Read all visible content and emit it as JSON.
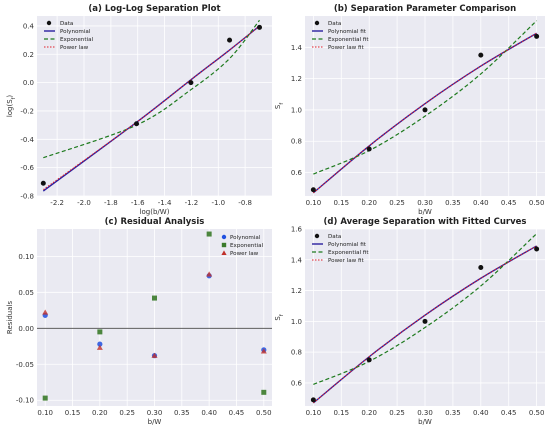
{
  "colors": {
    "data": "#111111",
    "polynomial": "#2a1fa0",
    "exponential": "#1e7a1e",
    "power": "#e0202a",
    "panel_bg": "#eaeaf2",
    "grid": "#ffffff",
    "resid_poly": "#2050e0",
    "resid_exp": "#3a7a2a",
    "resid_pow": "#c0302a",
    "zero_line": "#444444"
  },
  "chart_data": [
    {
      "type": "line",
      "title": "(a) Log-Log Separation Plot",
      "xlabel": "log(b/W)",
      "ylabel": "log(Sf)",
      "xlim": [
        -2.35,
        -0.6
      ],
      "ylim": [
        -0.8,
        0.47
      ],
      "xticks": [
        -2.2,
        -2.0,
        -1.8,
        -1.6,
        -1.4,
        -1.2,
        -1.0,
        -0.8
      ],
      "yticks": [
        -0.8,
        -0.6,
        -0.4,
        -0.2,
        0.0,
        0.2,
        0.4
      ],
      "grid": true,
      "legend_position": "top-left",
      "scatter": {
        "name": "Data",
        "x": [
          -2.303,
          -1.609,
          -1.204,
          -0.916,
          -0.693
        ],
        "y": [
          -0.71,
          -0.29,
          0.0,
          0.3,
          0.39
        ]
      },
      "series": [
        {
          "name": "Polynomial",
          "x": [
            -2.303,
            -1.609,
            -1.204,
            -0.916,
            -0.693
          ],
          "y": [
            -0.765,
            -0.28,
            0.02,
            0.23,
            0.4
          ]
        },
        {
          "name": "Exponential",
          "x": [
            -2.303,
            -1.609,
            -1.204,
            -0.916,
            -0.693
          ],
          "y": [
            -0.53,
            -0.3,
            -0.05,
            0.17,
            0.44
          ]
        },
        {
          "name": "Power law",
          "x": [
            -2.303,
            -1.609,
            -1.204,
            -0.916,
            -0.693
          ],
          "y": [
            -0.755,
            -0.28,
            0.02,
            0.23,
            0.4
          ]
        }
      ]
    },
    {
      "type": "line",
      "title": "(b) Separation Parameter Comparison",
      "xlabel": "b/W",
      "ylabel": "Sf",
      "xlim": [
        0.085,
        0.515
      ],
      "ylim": [
        0.45,
        1.6
      ],
      "xticks": [
        0.1,
        0.15,
        0.2,
        0.25,
        0.3,
        0.35,
        0.4,
        0.45,
        0.5
      ],
      "yticks": [
        0.6,
        0.8,
        1.0,
        1.2,
        1.4
      ],
      "grid": true,
      "legend_position": "top-left",
      "scatter": {
        "name": "Data",
        "x": [
          0.1,
          0.2,
          0.3,
          0.4,
          0.5
        ],
        "y": [
          0.49,
          0.75,
          1.0,
          1.35,
          1.47
        ]
      },
      "series": [
        {
          "name": "Polynomial fit",
          "x": [
            0.1,
            0.2,
            0.3,
            0.4,
            0.5
          ],
          "y": [
            0.47,
            0.77,
            1.04,
            1.28,
            1.49
          ]
        },
        {
          "name": "Exponential fit",
          "x": [
            0.1,
            0.2,
            0.3,
            0.4,
            0.5
          ],
          "y": [
            0.59,
            0.74,
            0.96,
            1.23,
            1.57
          ]
        },
        {
          "name": "Power law fit",
          "x": [
            0.1,
            0.2,
            0.3,
            0.4,
            0.5
          ],
          "y": [
            0.47,
            0.77,
            1.04,
            1.28,
            1.49
          ]
        }
      ]
    },
    {
      "type": "scatter",
      "title": "(c) Residual Analysis",
      "xlabel": "b/W",
      "ylabel": "Residuals",
      "xlim": [
        0.085,
        0.515
      ],
      "ylim": [
        -0.108,
        0.138
      ],
      "xticks": [
        0.1,
        0.15,
        0.2,
        0.25,
        0.3,
        0.35,
        0.4,
        0.45,
        0.5
      ],
      "yticks": [
        -0.1,
        -0.05,
        0.0,
        0.05,
        0.1
      ],
      "grid": true,
      "legend_position": "top-right",
      "series": [
        {
          "name": "Polynomial",
          "marker": "circle",
          "x": [
            0.1,
            0.2,
            0.3,
            0.4,
            0.5
          ],
          "y": [
            0.018,
            -0.022,
            -0.038,
            0.073,
            -0.03
          ]
        },
        {
          "name": "Exponential",
          "marker": "square",
          "x": [
            0.1,
            0.2,
            0.3,
            0.4,
            0.5
          ],
          "y": [
            -0.097,
            -0.005,
            0.042,
            0.131,
            -0.089
          ]
        },
        {
          "name": "Power law",
          "marker": "triangle",
          "x": [
            0.1,
            0.2,
            0.3,
            0.4,
            0.5
          ],
          "y": [
            0.022,
            -0.027,
            -0.038,
            0.075,
            -0.032
          ]
        }
      ]
    },
    {
      "type": "line",
      "title": "(d) Average Separation with Fitted Curves",
      "xlabel": "b/W",
      "ylabel": "Sf",
      "xlim": [
        0.085,
        0.515
      ],
      "ylim": [
        0.45,
        1.6
      ],
      "xticks": [
        0.1,
        0.15,
        0.2,
        0.25,
        0.3,
        0.35,
        0.4,
        0.45,
        0.5
      ],
      "yticks": [
        0.6,
        0.8,
        1.0,
        1.2,
        1.4,
        1.6
      ],
      "grid": true,
      "legend_position": "top-left",
      "scatter": {
        "name": "Data",
        "x": [
          0.1,
          0.2,
          0.3,
          0.4,
          0.5
        ],
        "y": [
          0.49,
          0.75,
          1.0,
          1.35,
          1.47
        ]
      },
      "series": [
        {
          "name": "Polynomial fit",
          "x": [
            0.1,
            0.2,
            0.3,
            0.4,
            0.5
          ],
          "y": [
            0.47,
            0.77,
            1.04,
            1.28,
            1.49
          ]
        },
        {
          "name": "Exponential fit",
          "x": [
            0.1,
            0.2,
            0.3,
            0.4,
            0.5
          ],
          "y": [
            0.59,
            0.74,
            0.96,
            1.23,
            1.57
          ]
        },
        {
          "name": "Power law fit",
          "x": [
            0.1,
            0.2,
            0.3,
            0.4,
            0.5
          ],
          "y": [
            0.47,
            0.77,
            1.04,
            1.28,
            1.49
          ]
        }
      ]
    }
  ]
}
